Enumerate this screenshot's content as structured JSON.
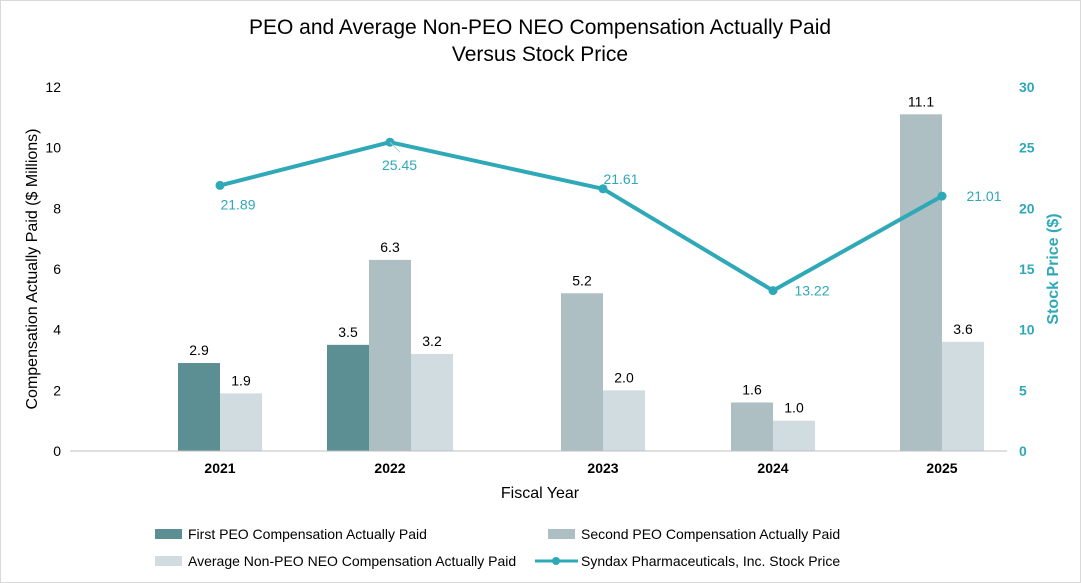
{
  "chart_data": {
    "type": "bar",
    "title": [
      "PEO and Average Non-PEO NEO Compensation Actually Paid",
      "Versus Stock Price"
    ],
    "xlabel": "Fiscal Year",
    "ylabel": "Compensation Actually Paid ($ Millions)",
    "y2label": "Stock Price ($)",
    "categories": [
      "2021",
      "2022",
      "2023",
      "2024",
      "2025"
    ],
    "ylim": [
      0,
      12
    ],
    "yticks": [
      "0",
      "2",
      "4",
      "6",
      "8",
      "10",
      "12"
    ],
    "y2lim": [
      0,
      30
    ],
    "y2ticks": [
      "0",
      "5",
      "10",
      "15",
      "20",
      "25",
      "30"
    ],
    "grid": false,
    "legend_position": "bottom",
    "series": [
      {
        "name": "First PEO Compensation Actually Paid",
        "kind": "bar",
        "color": "#5b8f93",
        "values": [
          2.9,
          3.5,
          null,
          null,
          null
        ],
        "labels": [
          "2.9",
          "3.5",
          "",
          "",
          ""
        ]
      },
      {
        "name": "Second PEO Compensation Actually Paid",
        "kind": "bar",
        "color": "#adbfc2",
        "values": [
          null,
          6.3,
          5.2,
          1.6,
          11.1
        ],
        "labels": [
          "",
          "6.3",
          "5.2",
          "1.6",
          "11.1"
        ]
      },
      {
        "name": "Average Non-PEO NEO Compensation Actually Paid",
        "kind": "bar",
        "color": "#d0dce0",
        "values": [
          1.9,
          3.2,
          2.0,
          1.0,
          3.6
        ],
        "labels": [
          "1.9",
          "3.2",
          "2.0",
          "1.0",
          "3.6"
        ]
      },
      {
        "name": "Syndax Pharmaceuticals, Inc. Stock Price",
        "kind": "line",
        "axis": "right",
        "color": "#2fa8b8",
        "values": [
          21.89,
          25.45,
          21.61,
          13.22,
          21.01
        ],
        "labels": [
          "21.89",
          "25.45",
          "21.61",
          "13.22",
          "21.01"
        ]
      }
    ]
  }
}
